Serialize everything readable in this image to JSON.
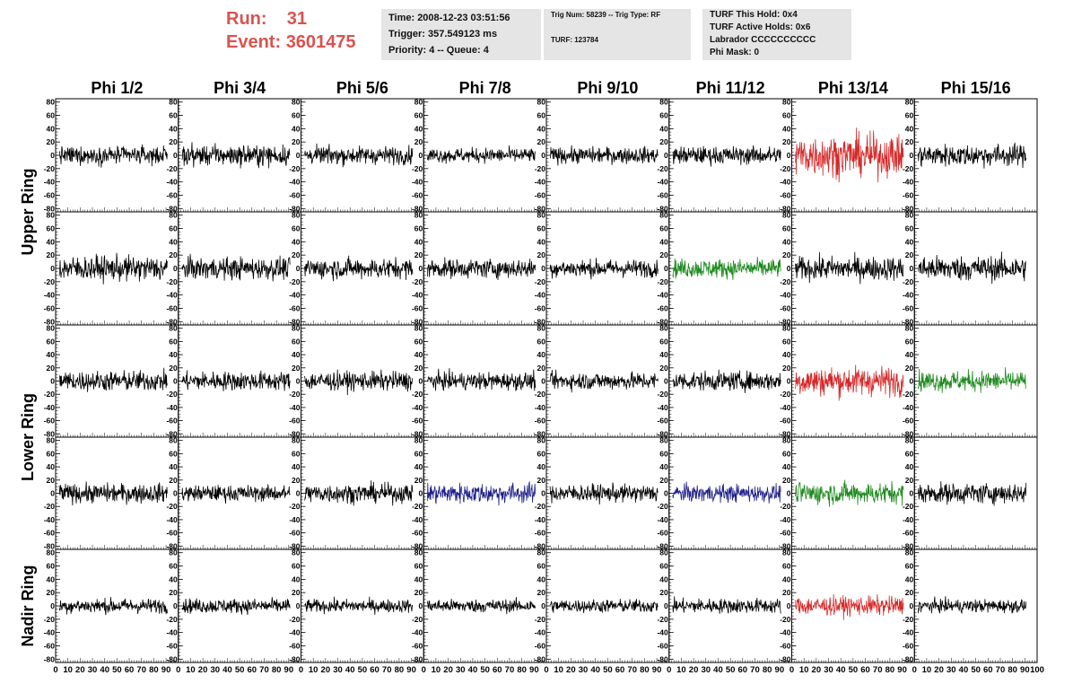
{
  "header": {
    "run_label": "Run:",
    "run_value": "31",
    "event_label": "Event:",
    "event_value": "3601475"
  },
  "info_time": {
    "time": "Time: 2008-12-23 03:51:56",
    "trigger": "Trigger: 357.549123 ms",
    "priority": "Priority: 4 -- Queue: 4"
  },
  "info_trig": {
    "trig": "Trig Num: 58239 -- Trig Type: RF",
    "turf": "TURF: 123784"
  },
  "info_turf": {
    "hold": "TURF This Hold: 0x4",
    "active": "TURF Active Holds: 0x6",
    "labrador": "Labrador CCCCCCCCCC",
    "phimask": "Phi Mask: 0"
  },
  "chart_data": {
    "type": "line",
    "columns": [
      "Phi 1/2",
      "Phi 3/4",
      "Phi 5/6",
      "Phi 7/8",
      "Phi 9/10",
      "Phi 11/12",
      "Phi 13/14",
      "Phi 15/16"
    ],
    "rows": [
      "Upper Ring",
      "Lower Ring",
      "Nadir Ring"
    ],
    "row_heights": [
      2,
      2,
      1
    ],
    "xlim": [
      0,
      100
    ],
    "ylim": [
      -85,
      85
    ],
    "y_ticks": [
      80,
      60,
      40,
      20,
      0,
      -20,
      -40,
      -60,
      -80
    ],
    "x_ticks": [
      0,
      10,
      20,
      30,
      40,
      50,
      60,
      70,
      80,
      90
    ],
    "last_x_tick": 100,
    "colors": {
      "normal": "#000000",
      "red": "#d42a2a",
      "green": "#1e8a1e",
      "blue": "#20208a"
    },
    "panels": [
      [
        "normal",
        "normal",
        "normal",
        "normal",
        "normal",
        "normal",
        "red",
        "normal"
      ],
      [
        "normal",
        "normal",
        "normal",
        "normal",
        "normal",
        "green",
        "normal",
        "normal"
      ],
      [
        "normal",
        "normal",
        "normal",
        "normal",
        "normal",
        "normal",
        "red",
        "green"
      ],
      [
        "normal",
        "normal",
        "normal",
        "blue",
        "normal",
        "blue",
        "green",
        "normal"
      ],
      [
        "normal",
        "normal",
        "normal",
        "normal",
        "normal",
        "normal",
        "red",
        "normal"
      ]
    ],
    "amplitude": [
      [
        12,
        14,
        12,
        10,
        11,
        12,
        28,
        15
      ],
      [
        17,
        15,
        14,
        13,
        12,
        13,
        16,
        17
      ],
      [
        14,
        13,
        13,
        12,
        12,
        13,
        20,
        14
      ],
      [
        13,
        11,
        13,
        14,
        12,
        12,
        15,
        14
      ],
      [
        10,
        10,
        9,
        9,
        9,
        10,
        13,
        9
      ]
    ]
  }
}
